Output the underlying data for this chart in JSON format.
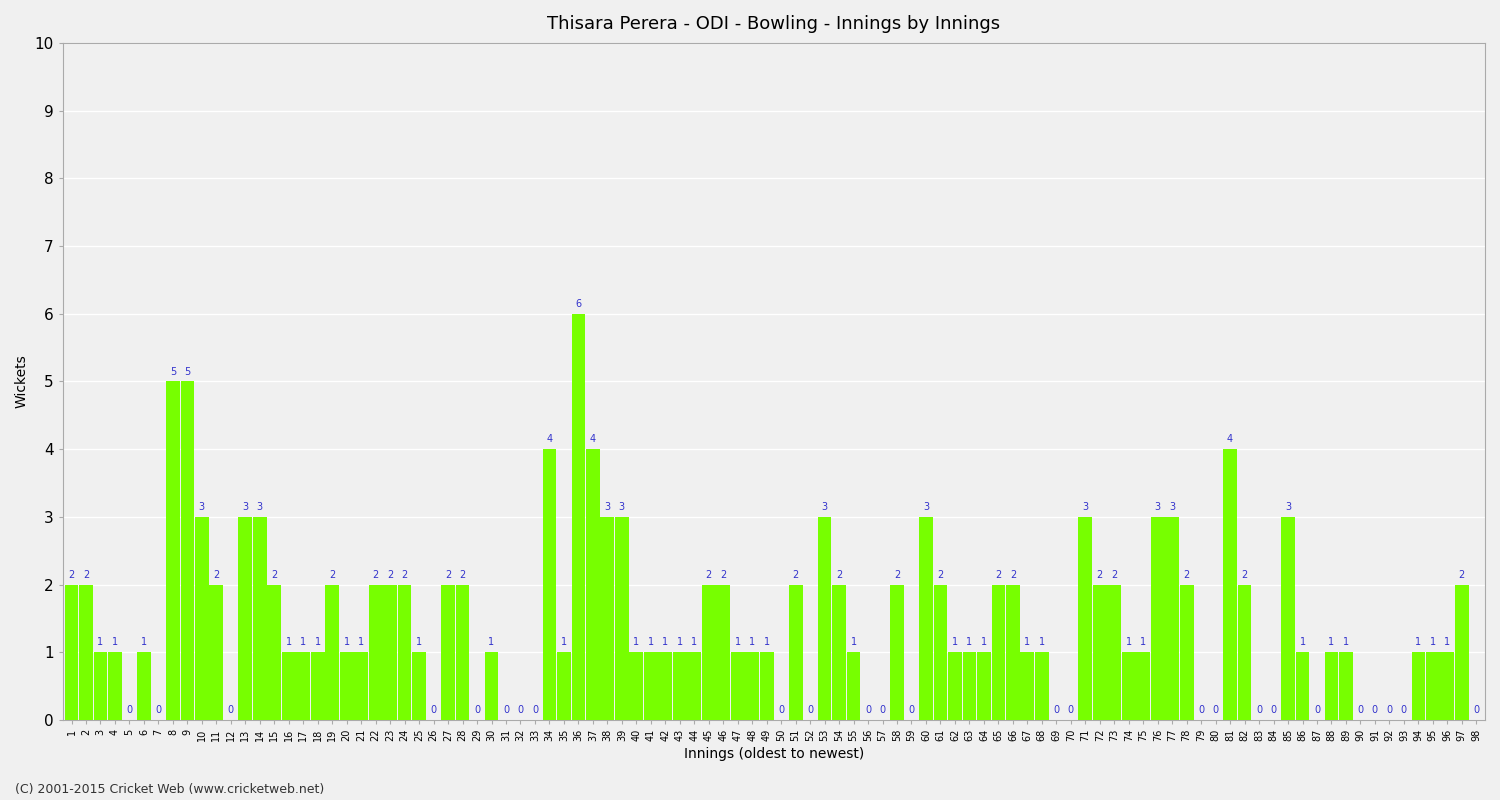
{
  "title": "Thisara Perera - ODI - Bowling - Innings by Innings",
  "xlabel": "Innings (oldest to newest)",
  "ylabel": "Wickets",
  "ylim": [
    0,
    10
  ],
  "yticks": [
    0,
    1,
    2,
    3,
    4,
    5,
    6,
    7,
    8,
    9,
    10
  ],
  "bar_color": "#77ff00",
  "label_color": "#3333cc",
  "plot_bg_color": "#f0f0f0",
  "figure_bg_color": "#f0f0f0",
  "grid_color": "#ffffff",
  "footer": "(C) 2001-2015 Cricket Web (www.cricketweb.net)",
  "innings": [
    1,
    2,
    3,
    4,
    5,
    6,
    7,
    8,
    9,
    10,
    11,
    12,
    13,
    14,
    15,
    16,
    17,
    18,
    19,
    20,
    21,
    22,
    23,
    24,
    25,
    26,
    27,
    28,
    29,
    30,
    31,
    32,
    33,
    34,
    35,
    36,
    37,
    38,
    39,
    40,
    41,
    42,
    43,
    44,
    45,
    46,
    47,
    48,
    49,
    50,
    51,
    52,
    53,
    54,
    55,
    56,
    57,
    58,
    59,
    60,
    61,
    62,
    63,
    64,
    65,
    66,
    67,
    68,
    69,
    70,
    71,
    72,
    73,
    74,
    75,
    76,
    77,
    78,
    79,
    80,
    81,
    82,
    83,
    84,
    85,
    86,
    87,
    88,
    89,
    90,
    91,
    92,
    93,
    94,
    95,
    96,
    97,
    98
  ],
  "wickets": [
    2,
    2,
    1,
    1,
    0,
    1,
    0,
    5,
    5,
    3,
    2,
    0,
    3,
    3,
    2,
    1,
    1,
    1,
    2,
    1,
    1,
    2,
    2,
    2,
    1,
    0,
    2,
    2,
    0,
    1,
    0,
    0,
    0,
    4,
    1,
    6,
    4,
    3,
    3,
    1,
    1,
    1,
    1,
    1,
    2,
    2,
    1,
    1,
    1,
    0,
    2,
    0,
    3,
    2,
    1,
    0,
    0,
    2,
    0,
    3,
    2,
    1,
    1,
    1,
    2,
    2,
    1,
    1,
    0,
    0,
    3,
    2,
    2,
    1,
    1,
    3,
    3,
    2,
    0,
    0,
    4,
    2,
    0,
    0,
    3,
    1,
    0,
    1,
    1,
    0,
    0,
    0,
    0,
    1,
    1,
    1,
    2,
    0
  ]
}
